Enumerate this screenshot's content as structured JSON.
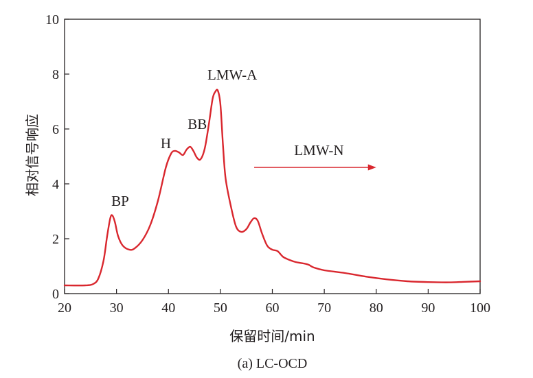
{
  "chart_data": {
    "type": "line",
    "title": "",
    "caption": "(a) LC-OCD",
    "xlabel": "保留时间/min",
    "ylabel": "相对信号响应",
    "xlim": [
      20,
      100
    ],
    "ylim": [
      0,
      10
    ],
    "x_ticks": [
      20,
      30,
      40,
      50,
      60,
      70,
      80,
      90,
      100
    ],
    "y_ticks": [
      0,
      2,
      4,
      6,
      8,
      10
    ],
    "grid": false,
    "legend": "none",
    "line_color": "#d9272e",
    "series": [
      {
        "x": [
          20,
          24,
          25.5,
          26.5,
          27.5,
          28.2,
          28.8,
          29.2,
          29.7,
          30.3,
          31.2,
          32.5,
          33.5,
          35,
          36.5,
          38,
          39.5,
          40.5,
          41.2,
          42,
          42.8,
          43.5,
          44.2,
          44.8,
          45.5,
          46.2,
          47,
          47.8,
          48.5,
          49,
          49.5,
          50,
          50.5,
          51,
          52,
          53,
          54,
          55,
          55.8,
          56.5,
          57.2,
          58,
          59,
          60,
          61,
          62,
          63,
          64.5,
          66,
          67,
          68,
          70,
          74,
          78,
          82,
          86,
          90,
          94,
          97,
          100
        ],
        "y": [
          0.3,
          0.3,
          0.35,
          0.55,
          1.2,
          2.1,
          2.75,
          2.85,
          2.6,
          2.1,
          1.75,
          1.6,
          1.65,
          1.95,
          2.5,
          3.4,
          4.6,
          5.1,
          5.2,
          5.15,
          5.05,
          5.25,
          5.35,
          5.2,
          4.95,
          4.9,
          5.3,
          6.2,
          7.1,
          7.35,
          7.4,
          6.9,
          5.4,
          4.2,
          3.2,
          2.45,
          2.25,
          2.35,
          2.6,
          2.75,
          2.65,
          2.2,
          1.75,
          1.6,
          1.55,
          1.35,
          1.25,
          1.15,
          1.1,
          1.05,
          0.95,
          0.85,
          0.75,
          0.62,
          0.52,
          0.45,
          0.42,
          0.41,
          0.43,
          0.45
        ]
      }
    ],
    "annotations": [
      {
        "text": "BP",
        "x": 29,
        "y": 3.2
      },
      {
        "text": "H",
        "x": 38.5,
        "y": 5.3
      },
      {
        "text": "BB",
        "x": 43.7,
        "y": 6
      },
      {
        "text": "LMW-A",
        "x": 47.5,
        "y": 7.8
      },
      {
        "text": "LMW-N",
        "x": 64.2,
        "y": 5.05
      }
    ],
    "arrow": {
      "from": [
        56.5,
        4.6
      ],
      "to": [
        80,
        4.6
      ]
    }
  }
}
